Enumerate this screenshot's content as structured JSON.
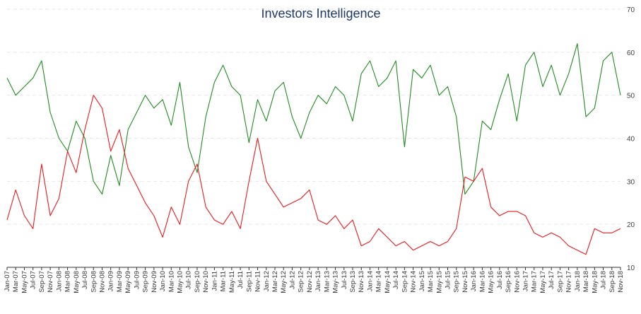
{
  "chart_data": {
    "type": "line",
    "title": "Investors Intelligence",
    "xlabel": "",
    "ylabel": "",
    "ylim": [
      10,
      70
    ],
    "yticks": [
      "10",
      "20",
      "30",
      "40",
      "50",
      "60",
      "70"
    ],
    "y_axis_side": "right",
    "grid": true,
    "legend": "none",
    "x_range": [
      "2007-01",
      "2018-11"
    ],
    "xticks": [
      "Jan-07",
      "Mar-07",
      "May-07",
      "Jul-07",
      "Sep-07",
      "Nov-07",
      "Jan-08",
      "Mar-08",
      "May-08",
      "Jul-08",
      "Sep-08",
      "Nov-08",
      "Jan-09",
      "Mar-09",
      "May-09",
      "Jul-09",
      "Sep-09",
      "Nov-09",
      "Jan-10",
      "Mar-10",
      "May-10",
      "Jul-10",
      "Sep-10",
      "Nov-10",
      "Jan-11",
      "Mar-11",
      "May-11",
      "Jul-11",
      "Sep-11",
      "Nov-11",
      "Jan-12",
      "Mar-12",
      "May-12",
      "Jul-12",
      "Sep-12",
      "Nov-12",
      "Jan-13",
      "Mar-13",
      "May-13",
      "Jul-13",
      "Sep-13",
      "Nov-13",
      "Jan-14",
      "Mar-14",
      "May-14",
      "Jul-14",
      "Sep-14",
      "Nov-14",
      "Jan-15",
      "Mar-15",
      "May-15",
      "Jul-15",
      "Sep-15",
      "Nov-15",
      "Jan-16",
      "Mar-16",
      "May-16",
      "Jul-16",
      "Sep-16",
      "Nov-16",
      "Jan-17",
      "Mar-17",
      "May-17",
      "Jul-17",
      "Sep-17",
      "Nov-17",
      "Jan-18",
      "Mar-18",
      "May-18",
      "Jul-18",
      "Sep-18",
      "Nov-18"
    ],
    "series": [
      {
        "color": "#228B22",
        "x": [
          "2007-01",
          "2007-03",
          "2007-05",
          "2007-07",
          "2007-09",
          "2007-11",
          "2008-01",
          "2008-03",
          "2008-05",
          "2008-07",
          "2008-09",
          "2008-11",
          "2009-01",
          "2009-03",
          "2009-05",
          "2009-07",
          "2009-09",
          "2009-11",
          "2010-01",
          "2010-03",
          "2010-05",
          "2010-07",
          "2010-09",
          "2010-11",
          "2011-01",
          "2011-03",
          "2011-05",
          "2011-07",
          "2011-09",
          "2011-11",
          "2012-01",
          "2012-03",
          "2012-05",
          "2012-07",
          "2012-09",
          "2012-11",
          "2013-01",
          "2013-03",
          "2013-05",
          "2013-07",
          "2013-09",
          "2013-11",
          "2014-01",
          "2014-03",
          "2014-05",
          "2014-07",
          "2014-09",
          "2014-11",
          "2015-01",
          "2015-03",
          "2015-05",
          "2015-07",
          "2015-09",
          "2015-11",
          "2016-01",
          "2016-03",
          "2016-05",
          "2016-07",
          "2016-09",
          "2016-11",
          "2017-01",
          "2017-03",
          "2017-05",
          "2017-07",
          "2017-09",
          "2017-11",
          "2018-01",
          "2018-03",
          "2018-05",
          "2018-07",
          "2018-09",
          "2018-11"
        ],
        "values": [
          54,
          50,
          52,
          54,
          58,
          46,
          40,
          37,
          44,
          40,
          30,
          27,
          36,
          29,
          42,
          46,
          50,
          47,
          49,
          43,
          53,
          38,
          32,
          45,
          53,
          57,
          52,
          50,
          39,
          49,
          44,
          51,
          53,
          45,
          40,
          46,
          50,
          48,
          52,
          50,
          44,
          55,
          58,
          52,
          54,
          58,
          38,
          56,
          54,
          57,
          50,
          52,
          45,
          27,
          30,
          44,
          42,
          49,
          55,
          44,
          57,
          60,
          52,
          57,
          50,
          55,
          62,
          45,
          47,
          58,
          60,
          50
        ]
      },
      {
        "color": "#E8191E",
        "x": [
          "2007-01",
          "2007-03",
          "2007-05",
          "2007-07",
          "2007-09",
          "2007-11",
          "2008-01",
          "2008-03",
          "2008-05",
          "2008-07",
          "2008-09",
          "2008-11",
          "2009-01",
          "2009-03",
          "2009-05",
          "2009-07",
          "2009-09",
          "2009-11",
          "2010-01",
          "2010-03",
          "2010-05",
          "2010-07",
          "2010-09",
          "2010-11",
          "2011-01",
          "2011-03",
          "2011-05",
          "2011-07",
          "2011-09",
          "2011-11",
          "2012-01",
          "2012-03",
          "2012-05",
          "2012-07",
          "2012-09",
          "2012-11",
          "2013-01",
          "2013-03",
          "2013-05",
          "2013-07",
          "2013-09",
          "2013-11",
          "2014-01",
          "2014-03",
          "2014-05",
          "2014-07",
          "2014-09",
          "2014-11",
          "2015-01",
          "2015-03",
          "2015-05",
          "2015-07",
          "2015-09",
          "2015-11",
          "2016-01",
          "2016-03",
          "2016-05",
          "2016-07",
          "2016-09",
          "2016-11",
          "2017-01",
          "2017-03",
          "2017-05",
          "2017-07",
          "2017-09",
          "2017-11",
          "2018-01",
          "2018-03",
          "2018-05",
          "2018-07",
          "2018-09",
          "2018-11"
        ],
        "values": [
          21,
          28,
          22,
          19,
          34,
          22,
          26,
          37,
          32,
          42,
          50,
          47,
          37,
          42,
          33,
          29,
          25,
          22,
          17,
          24,
          20,
          30,
          34,
          24,
          21,
          20,
          23,
          19,
          30,
          40,
          30,
          27,
          24,
          25,
          26,
          28,
          21,
          20,
          22,
          19,
          21,
          15,
          16,
          19,
          17,
          15,
          16,
          14,
          15,
          16,
          15,
          16,
          19,
          31,
          30,
          33,
          24,
          22,
          23,
          23,
          22,
          18,
          17,
          18,
          17,
          15,
          14,
          13,
          19,
          18,
          18,
          19
        ]
      }
    ]
  }
}
